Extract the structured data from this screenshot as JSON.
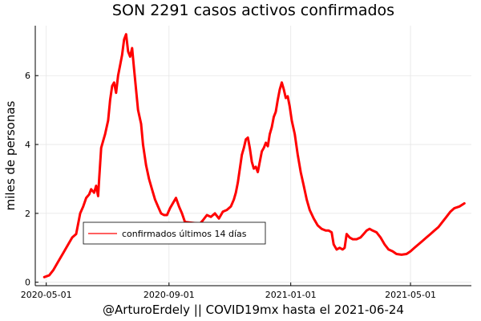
{
  "chart_data": {
    "type": "line",
    "title": "SON   2291 casos activos confirmados",
    "xlabel": "@ArturoErdely || COVID19mx hasta el 2021-06-24",
    "ylabel": "miles de personas",
    "x_type": "date",
    "xlim": [
      "2020-04-20",
      "2021-07-01"
    ],
    "ylim": [
      -0.1,
      7.45
    ],
    "x_ticks": [
      "2020-05-01",
      "2020-09-01",
      "2021-01-01",
      "2021-05-01"
    ],
    "y_ticks": [
      0,
      2,
      4,
      6
    ],
    "grid": true,
    "legend_position": "bottom-left",
    "series": [
      {
        "name": "confirmados últimos 14 días",
        "color": "#ff0000",
        "points": [
          [
            "2020-04-29",
            0.15
          ],
          [
            "2020-05-04",
            0.2
          ],
          [
            "2020-05-08",
            0.35
          ],
          [
            "2020-05-13",
            0.6
          ],
          [
            "2020-05-18",
            0.85
          ],
          [
            "2020-05-23",
            1.1
          ],
          [
            "2020-05-27",
            1.3
          ],
          [
            "2020-05-31",
            1.4
          ],
          [
            "2020-06-02",
            1.7
          ],
          [
            "2020-06-04",
            2.0
          ],
          [
            "2020-06-07",
            2.2
          ],
          [
            "2020-06-10",
            2.45
          ],
          [
            "2020-06-13",
            2.55
          ],
          [
            "2020-06-15",
            2.7
          ],
          [
            "2020-06-18",
            2.6
          ],
          [
            "2020-06-20",
            2.8
          ],
          [
            "2020-06-22",
            2.5
          ],
          [
            "2020-06-23",
            3.0
          ],
          [
            "2020-06-25",
            3.9
          ],
          [
            "2020-06-27",
            4.1
          ],
          [
            "2020-06-29",
            4.3
          ],
          [
            "2020-07-02",
            4.7
          ],
          [
            "2020-07-04",
            5.3
          ],
          [
            "2020-07-06",
            5.7
          ],
          [
            "2020-07-08",
            5.8
          ],
          [
            "2020-07-10",
            5.5
          ],
          [
            "2020-07-12",
            6.0
          ],
          [
            "2020-07-14",
            6.3
          ],
          [
            "2020-07-16",
            6.6
          ],
          [
            "2020-07-18",
            7.05
          ],
          [
            "2020-07-20",
            7.2
          ],
          [
            "2020-07-22",
            6.7
          ],
          [
            "2020-07-24",
            6.55
          ],
          [
            "2020-07-26",
            6.8
          ],
          [
            "2020-07-28",
            6.2
          ],
          [
            "2020-07-30",
            5.6
          ],
          [
            "2020-08-01",
            5.0
          ],
          [
            "2020-08-04",
            4.6
          ],
          [
            "2020-08-06",
            4.0
          ],
          [
            "2020-08-09",
            3.4
          ],
          [
            "2020-08-12",
            3.0
          ],
          [
            "2020-08-15",
            2.7
          ],
          [
            "2020-08-18",
            2.4
          ],
          [
            "2020-08-21",
            2.2
          ],
          [
            "2020-08-24",
            2.0
          ],
          [
            "2020-08-27",
            1.95
          ],
          [
            "2020-08-30",
            1.95
          ],
          [
            "2020-09-02",
            2.15
          ],
          [
            "2020-09-05",
            2.3
          ],
          [
            "2020-09-08",
            2.45
          ],
          [
            "2020-09-11",
            2.2
          ],
          [
            "2020-09-14",
            2.0
          ],
          [
            "2020-09-17",
            1.75
          ],
          [
            "2020-10-02",
            1.7
          ],
          [
            "2020-10-05",
            1.8
          ],
          [
            "2020-10-09",
            1.95
          ],
          [
            "2020-10-13",
            1.9
          ],
          [
            "2020-10-17",
            2.0
          ],
          [
            "2020-10-21",
            1.85
          ],
          [
            "2020-10-25",
            2.05
          ],
          [
            "2020-10-29",
            2.1
          ],
          [
            "2020-11-02",
            2.2
          ],
          [
            "2020-11-05",
            2.4
          ],
          [
            "2020-11-07",
            2.6
          ],
          [
            "2020-11-09",
            2.9
          ],
          [
            "2020-11-11",
            3.3
          ],
          [
            "2020-11-13",
            3.7
          ],
          [
            "2020-11-15",
            3.9
          ],
          [
            "2020-11-17",
            4.15
          ],
          [
            "2020-11-19",
            4.2
          ],
          [
            "2020-11-21",
            3.9
          ],
          [
            "2020-11-23",
            3.5
          ],
          [
            "2020-11-25",
            3.3
          ],
          [
            "2020-11-27",
            3.35
          ],
          [
            "2020-11-29",
            3.2
          ],
          [
            "2020-12-01",
            3.5
          ],
          [
            "2020-12-03",
            3.8
          ],
          [
            "2020-12-05",
            3.9
          ],
          [
            "2020-12-07",
            4.05
          ],
          [
            "2020-12-09",
            3.95
          ],
          [
            "2020-12-11",
            4.3
          ],
          [
            "2020-12-13",
            4.5
          ],
          [
            "2020-12-15",
            4.8
          ],
          [
            "2020-12-17",
            4.95
          ],
          [
            "2020-12-19",
            5.3
          ],
          [
            "2020-12-21",
            5.6
          ],
          [
            "2020-12-23",
            5.8
          ],
          [
            "2020-12-25",
            5.6
          ],
          [
            "2020-12-27",
            5.35
          ],
          [
            "2020-12-29",
            5.4
          ],
          [
            "2020-12-31",
            5.1
          ],
          [
            "2021-01-02",
            4.7
          ],
          [
            "2021-01-05",
            4.3
          ],
          [
            "2021-01-08",
            3.7
          ],
          [
            "2021-01-11",
            3.2
          ],
          [
            "2021-01-14",
            2.8
          ],
          [
            "2021-01-17",
            2.4
          ],
          [
            "2021-01-20",
            2.1
          ],
          [
            "2021-01-24",
            1.85
          ],
          [
            "2021-01-28",
            1.65
          ],
          [
            "2021-02-01",
            1.55
          ],
          [
            "2021-02-05",
            1.5
          ],
          [
            "2021-02-08",
            1.5
          ],
          [
            "2021-02-11",
            1.45
          ],
          [
            "2021-02-13",
            1.1
          ],
          [
            "2021-02-16",
            0.95
          ],
          [
            "2021-02-19",
            1.0
          ],
          [
            "2021-02-22",
            0.95
          ],
          [
            "2021-02-24",
            1.0
          ],
          [
            "2021-02-26",
            1.4
          ],
          [
            "2021-03-01",
            1.3
          ],
          [
            "2021-03-04",
            1.25
          ],
          [
            "2021-03-08",
            1.25
          ],
          [
            "2021-03-12",
            1.3
          ],
          [
            "2021-03-15",
            1.4
          ],
          [
            "2021-03-18",
            1.5
          ],
          [
            "2021-03-21",
            1.55
          ],
          [
            "2021-03-24",
            1.5
          ],
          [
            "2021-03-28",
            1.45
          ],
          [
            "2021-04-01",
            1.3
          ],
          [
            "2021-04-05",
            1.1
          ],
          [
            "2021-04-09",
            0.95
          ],
          [
            "2021-04-13",
            0.9
          ],
          [
            "2021-04-17",
            0.82
          ],
          [
            "2021-04-22",
            0.8
          ],
          [
            "2021-04-27",
            0.82
          ],
          [
            "2021-05-01",
            0.9
          ],
          [
            "2021-05-05",
            1.0
          ],
          [
            "2021-05-09",
            1.1
          ],
          [
            "2021-05-13",
            1.2
          ],
          [
            "2021-05-17",
            1.3
          ],
          [
            "2021-05-21",
            1.4
          ],
          [
            "2021-05-25",
            1.5
          ],
          [
            "2021-05-29",
            1.6
          ],
          [
            "2021-06-02",
            1.75
          ],
          [
            "2021-06-06",
            1.9
          ],
          [
            "2021-06-10",
            2.05
          ],
          [
            "2021-06-14",
            2.15
          ],
          [
            "2021-06-19",
            2.2
          ],
          [
            "2021-06-24",
            2.29
          ]
        ]
      }
    ]
  }
}
